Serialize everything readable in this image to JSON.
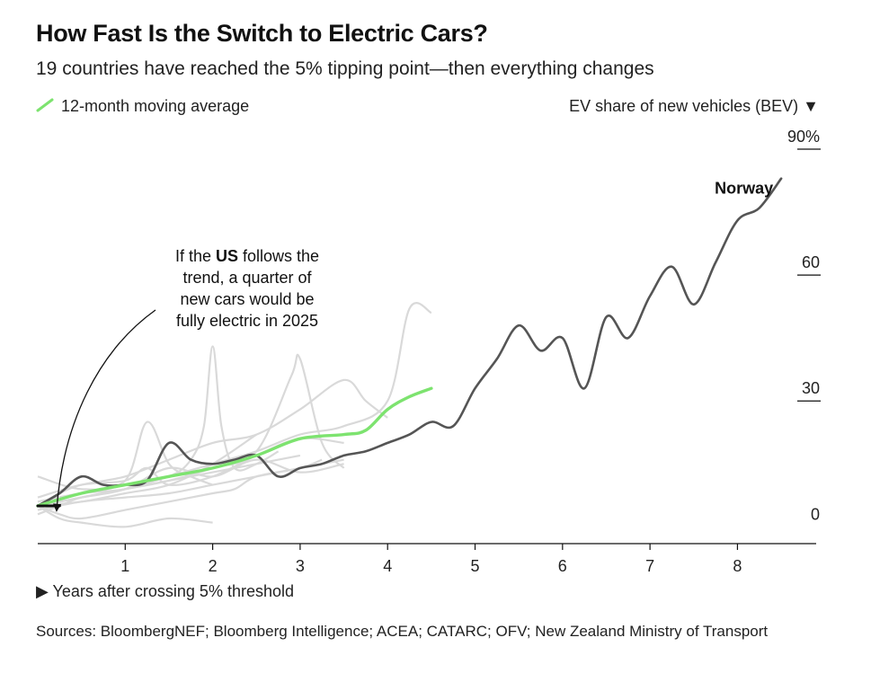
{
  "title": "How Fast Is the Switch to Electric Cars?",
  "subtitle": "19 countries have reached the 5% tipping point—then everything changes",
  "legend": {
    "label": "12-month moving average",
    "color": "#7de36f",
    "icon": "diagonal-line-icon"
  },
  "ylabel": "EV share of new vehicles (BEV) ▼",
  "xlabel": "▶ Years after crossing 5% threshold",
  "source": "Sources: BloombergNEF; Bloomberg Intelligence; ACEA; CATARC; OFV; New Zealand Ministry of Transport",
  "annotation": {
    "lines": [
      {
        "pre": "If the ",
        "bold": "US",
        "post": " follows the"
      },
      {
        "pre": "trend, a quarter of",
        "bold": "",
        "post": ""
      },
      {
        "pre": "new cars would be",
        "bold": "",
        "post": ""
      },
      {
        "pre": "fully electric in 2025",
        "bold": "",
        "post": ""
      }
    ]
  },
  "chart_data": {
    "type": "line",
    "title": "How Fast Is the Switch to Electric Cars?",
    "subtitle": "19 countries have reached the 5% tipping point—then everything changes",
    "xlabel": "Years after crossing 5% threshold",
    "ylabel": "EV share of new vehicles (BEV)",
    "xlim": [
      0,
      8.9
    ],
    "ylim": [
      -4,
      93
    ],
    "xticks": [
      1,
      2,
      3,
      4,
      5,
      6,
      7,
      8
    ],
    "yticks": [
      0,
      30,
      60,
      90
    ],
    "ytick_labels": [
      "0",
      "30",
      "60",
      "90%"
    ],
    "grid": false,
    "legend_position": "top-left",
    "colors": {
      "norway": "#555555",
      "average": "#7de36f",
      "others": "#d9d9d9",
      "us": "#111111"
    },
    "series": [
      {
        "name": "Norway",
        "x": [
          0,
          0.25,
          0.5,
          0.75,
          1.0,
          1.25,
          1.5,
          1.75,
          2.0,
          2.25,
          2.5,
          2.75,
          3.0,
          3.25,
          3.5,
          3.75,
          4.0,
          4.25,
          4.5,
          4.75,
          5.0,
          5.25,
          5.5,
          5.75,
          6.0,
          6.25,
          6.5,
          6.75,
          7.0,
          7.25,
          7.5,
          7.75,
          8.0,
          8.25,
          8.5
        ],
        "y": [
          5,
          8,
          12,
          10,
          10,
          11,
          20,
          16,
          15,
          16,
          17,
          12,
          14,
          15,
          17,
          18,
          20,
          22,
          25,
          24,
          33,
          40,
          48,
          42,
          45,
          33,
          50,
          45,
          55,
          62,
          53,
          63,
          73,
          76,
          83
        ]
      },
      {
        "name": "12-month moving average",
        "x": [
          0,
          0.5,
          1.0,
          1.5,
          2.0,
          2.5,
          3.0,
          3.5,
          3.75,
          4.0,
          4.25,
          4.5
        ],
        "y": [
          5,
          8,
          10,
          12,
          14,
          17,
          21,
          22,
          23,
          28,
          31,
          33
        ]
      },
      {
        "name": "US",
        "x": [
          0,
          0.25
        ],
        "y": [
          5,
          5
        ]
      }
    ],
    "other_countries": [
      {
        "x": [
          0,
          0.5,
          1.0,
          1.5,
          2.0,
          2.5,
          3.0,
          3.5
        ],
        "y": [
          5,
          7,
          9,
          14,
          12,
          16,
          13,
          15
        ]
      },
      {
        "x": [
          0,
          0.25,
          0.5,
          1.0,
          1.5,
          2.0,
          2.25,
          2.5,
          3.0,
          3.25
        ],
        "y": [
          5,
          3,
          2,
          4,
          6,
          8,
          9,
          12,
          14,
          16
        ]
      },
      {
        "x": [
          0,
          0.5,
          1.0,
          1.5,
          1.75,
          1.9,
          2.0,
          2.1,
          2.25,
          2.5,
          2.75
        ],
        "y": [
          5,
          8,
          10,
          12,
          16,
          24,
          43,
          24,
          14,
          15,
          18
        ]
      },
      {
        "x": [
          0,
          0.5,
          1.0,
          1.25,
          1.5,
          2.0,
          2.5,
          3.0,
          3.5
        ],
        "y": [
          7,
          10,
          11,
          14,
          10,
          12,
          17,
          21,
          20
        ]
      },
      {
        "x": [
          0,
          0.5,
          1.0,
          1.5,
          2.0,
          2.5,
          2.9,
          3.0,
          3.25,
          3.5
        ],
        "y": [
          5,
          7,
          9,
          11,
          14,
          18,
          36,
          40,
          20,
          14
        ]
      },
      {
        "x": [
          0,
          0.25,
          0.5,
          1.0,
          1.5,
          2.0,
          2.5,
          3.0,
          3.5,
          3.75,
          4.0
        ],
        "y": [
          5,
          8,
          10,
          12,
          16,
          20,
          22,
          28,
          35,
          30,
          26
        ]
      },
      {
        "x": [
          0,
          0.5,
          1.0,
          1.5,
          2.0,
          2.5,
          3.0,
          3.5,
          4.0,
          4.25,
          4.5
        ],
        "y": [
          6,
          8,
          9,
          12,
          15,
          18,
          22,
          24,
          30,
          52,
          51
        ]
      },
      {
        "x": [
          0,
          0.5,
          1.0,
          1.25,
          1.5,
          1.75,
          2.0
        ],
        "y": [
          12,
          9,
          11,
          25,
          15,
          12,
          10
        ]
      },
      {
        "x": [
          0,
          0.25,
          0.5,
          1.0,
          1.5,
          2.0
        ],
        "y": [
          5,
          2,
          1,
          0,
          2,
          1
        ]
      },
      {
        "x": [
          0,
          0.5,
          1.0,
          1.5,
          2.0,
          2.5
        ],
        "y": [
          5,
          6,
          8,
          10,
          15,
          22
        ]
      },
      {
        "x": [
          0,
          0.25,
          0.5,
          1.0,
          1.5,
          2.0,
          2.5,
          3.0
        ],
        "y": [
          3,
          5,
          7,
          9,
          11,
          13,
          15,
          17
        ]
      },
      {
        "x": [
          0,
          0.5,
          1.0,
          1.5,
          2.0,
          2.5,
          3.0,
          3.5
        ],
        "y": [
          4,
          6,
          7,
          8,
          10,
          12,
          14,
          16
        ]
      }
    ],
    "labels": [
      {
        "text": "Norway",
        "x": 8.1,
        "y": 82
      }
    ]
  }
}
